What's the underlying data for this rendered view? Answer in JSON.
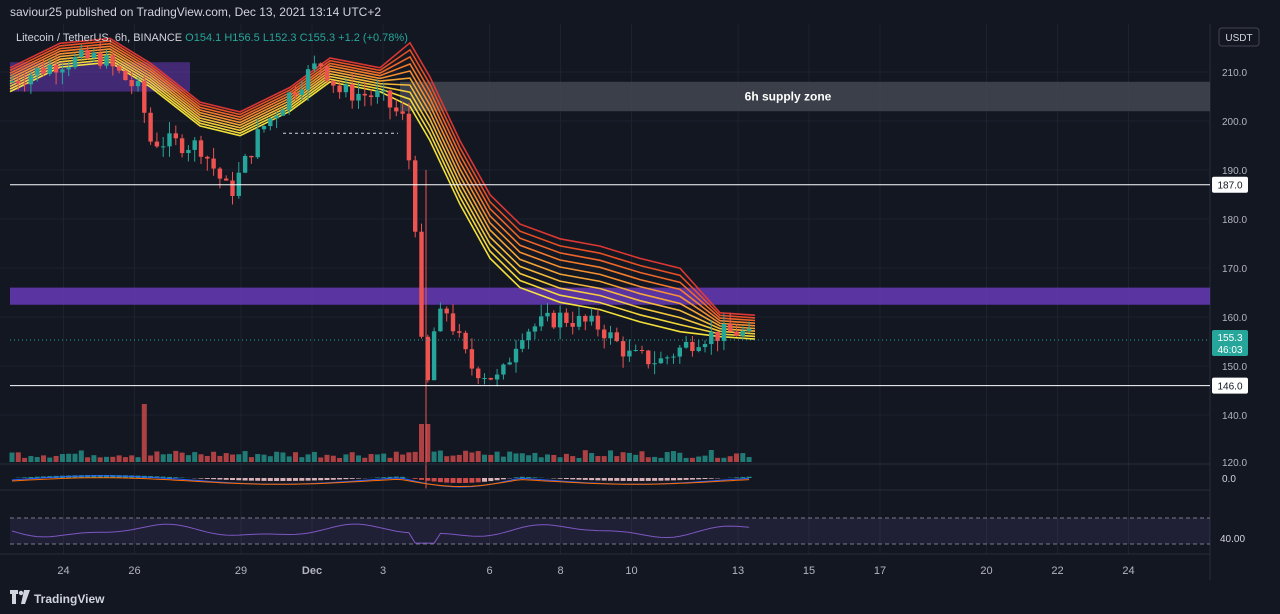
{
  "header": {
    "published": "saviour25 published on TradingView.com, Dec 13, 2021 13:14 UTC+2"
  },
  "legend": {
    "symbol": "Litecoin / TetherUS, 6h, BINANCE",
    "o": "O154.1",
    "h": "H156.5",
    "l": "L152.3",
    "c": "C155.3",
    "chg": "+1.2 (+0.78%)"
  },
  "footer": {
    "brand": "TradingView"
  },
  "colors": {
    "up": "#26a69a",
    "down": "#ef5350",
    "supply_zone": "#434651",
    "purple_zone": "#673ab7",
    "price_label_bg": "#26a69a"
  },
  "chart_data": {
    "type": "candlestick",
    "currency_label": "USDT",
    "price_axis": {
      "ylim": [
        120,
        215
      ],
      "ticks": [
        "210.0",
        "200.0",
        "190.0",
        "180.0",
        "170.0",
        "160.0",
        "150.0",
        "140.0",
        "120.0"
      ],
      "tick_values": [
        210,
        200,
        190,
        180,
        170,
        160,
        150,
        140,
        120
      ]
    },
    "macd_axis": {
      "ticks": [
        "0.0"
      ]
    },
    "rsi_axis": {
      "ticks": [
        "40.00"
      ]
    },
    "x_ticks": [
      "24",
      "26",
      "29",
      "Dec",
      "3",
      "6",
      "8",
      "10",
      "13",
      "15",
      "17",
      "20",
      "22",
      "24"
    ],
    "x_tick_days": [
      -7,
      -5,
      -2,
      0,
      2,
      5,
      7,
      9,
      12,
      14,
      16,
      19,
      21,
      23
    ],
    "horizontal_levels": [
      {
        "value": 187.0,
        "label": "187.0"
      },
      {
        "value": 146.0,
        "label": "146.0"
      }
    ],
    "current_price": {
      "value": 155.3,
      "label": "155.3",
      "countdown": "46:03"
    },
    "zones": [
      {
        "name": "6h supply zone",
        "label": "6h supply zone",
        "from": 202,
        "to": 208,
        "kind": "supply"
      },
      {
        "from": 162.5,
        "to": 166,
        "kind": "purple"
      }
    ],
    "candles": [
      [
        158,
        160,
        155,
        157
      ],
      [
        157,
        159,
        154,
        156
      ],
      [
        156,
        158,
        150,
        152
      ],
      [
        152,
        155,
        149,
        154
      ],
      [
        154,
        165,
        153,
        163
      ],
      [
        163,
        166,
        158,
        160
      ],
      [
        160,
        162,
        157,
        158
      ],
      [
        158,
        160,
        155,
        156
      ],
      [
        156,
        158,
        154,
        157
      ],
      [
        157,
        164,
        156,
        162
      ],
      [
        162,
        164,
        158,
        159
      ],
      [
        159,
        160,
        156,
        157
      ],
      [
        157,
        160,
        155,
        158
      ],
      [
        158,
        159,
        155,
        156
      ],
      [
        156,
        157,
        153,
        155
      ],
      [
        155,
        158,
        154,
        157
      ],
      [
        157,
        158,
        152,
        153
      ],
      [
        153,
        154,
        150,
        151
      ],
      [
        151,
        153,
        149,
        152
      ],
      [
        152,
        154,
        150,
        151
      ],
      [
        151,
        152,
        148,
        150
      ],
      [
        150,
        156,
        149,
        154
      ],
      [
        154,
        156,
        152,
        153
      ],
      [
        153,
        157,
        152,
        156
      ],
      [
        156,
        158,
        154,
        155
      ],
      [
        155,
        157,
        152,
        154
      ],
      [
        154,
        160,
        153,
        158
      ],
      [
        158,
        161,
        155,
        156
      ],
      [
        156,
        158,
        153,
        154
      ],
      [
        154,
        156,
        152,
        155
      ]
    ],
    "visible_last_close": 155.3
  }
}
